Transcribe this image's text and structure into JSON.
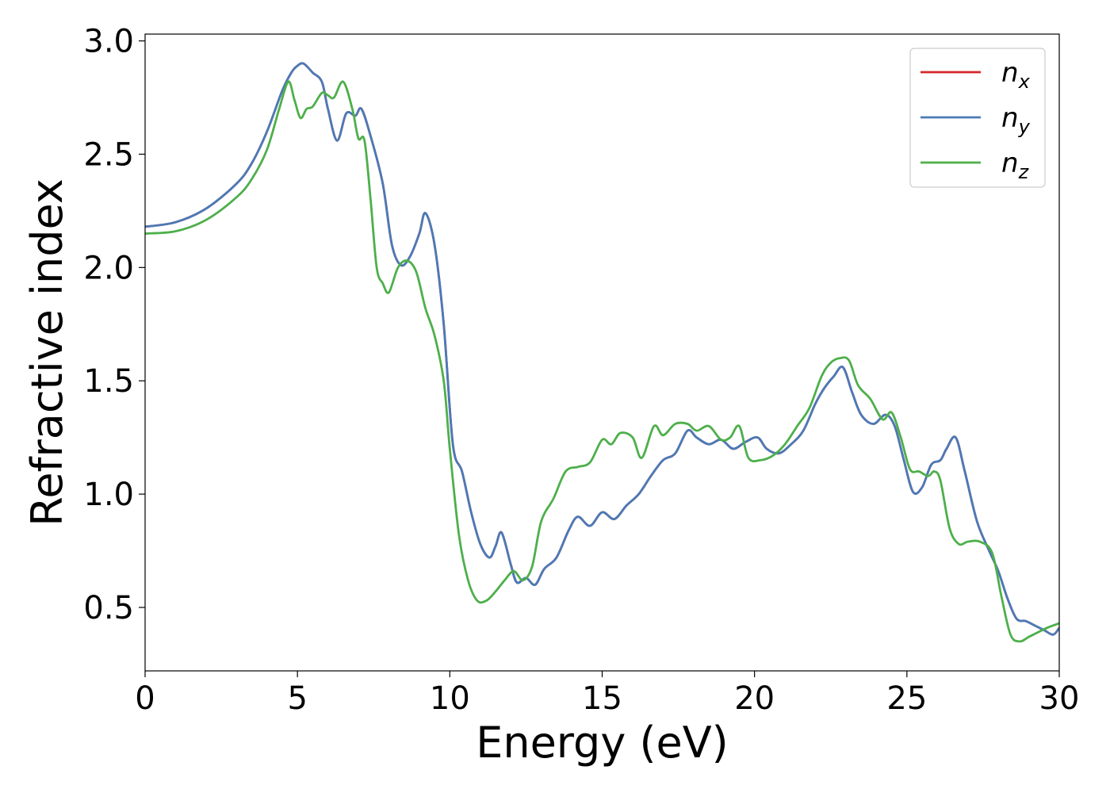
{
  "chart_data": {
    "type": "line",
    "title": "",
    "xlabel": "Energy (eV)",
    "ylabel": "Refractive index",
    "xlim": [
      0,
      30
    ],
    "ylim": [
      0.22,
      3.03
    ],
    "xticks": [
      0,
      5,
      10,
      15,
      20,
      25,
      30
    ],
    "yticks": [
      0.5,
      1.0,
      1.5,
      2.0,
      2.5,
      3.0
    ],
    "xtick_labels": [
      "0",
      "5",
      "10",
      "15",
      "20",
      "25",
      "30"
    ],
    "ytick_labels": [
      "0.5",
      "1.0",
      "1.5",
      "2.0",
      "2.5",
      "3.0"
    ],
    "grid": false,
    "legend_position": "top-right",
    "series": [
      {
        "name": "n",
        "subscript": "x",
        "color": "#d62728",
        "x": [
          0,
          1,
          2,
          3,
          3.5,
          4,
          4.5,
          4.8,
          5.0,
          5.2,
          5.5,
          5.8,
          6.0,
          6.3,
          6.6,
          6.9,
          7.1,
          7.4,
          7.8,
          8.1,
          8.4,
          8.7,
          9.0,
          9.2,
          9.5,
          9.8,
          10.1,
          10.4,
          10.7,
          11.0,
          11.3,
          11.5,
          11.7,
          12.0,
          12.2,
          12.5,
          12.8,
          13.1,
          13.5,
          13.9,
          14.2,
          14.6,
          15.0,
          15.4,
          15.8,
          16.2,
          16.6,
          17.0,
          17.4,
          17.8,
          18.1,
          18.5,
          18.9,
          19.3,
          19.7,
          20.1,
          20.4,
          20.8,
          21.2,
          21.6,
          22.0,
          22.3,
          22.6,
          22.9,
          23.2,
          23.5,
          23.9,
          24.3,
          24.6,
          24.9,
          25.2,
          25.5,
          25.8,
          26.1,
          26.3,
          26.6,
          26.9,
          27.3,
          27.7,
          28.0,
          28.3,
          28.6,
          28.9,
          29.2,
          29.5,
          29.8,
          30
        ],
        "y": [
          2.18,
          2.2,
          2.26,
          2.37,
          2.46,
          2.6,
          2.78,
          2.86,
          2.89,
          2.9,
          2.86,
          2.82,
          2.7,
          2.56,
          2.68,
          2.67,
          2.7,
          2.58,
          2.37,
          2.1,
          2.01,
          2.05,
          2.15,
          2.24,
          2.1,
          1.75,
          1.22,
          1.1,
          0.92,
          0.78,
          0.72,
          0.77,
          0.83,
          0.69,
          0.61,
          0.63,
          0.6,
          0.67,
          0.72,
          0.84,
          0.9,
          0.86,
          0.92,
          0.89,
          0.95,
          1.0,
          1.08,
          1.15,
          1.18,
          1.28,
          1.25,
          1.22,
          1.24,
          1.2,
          1.23,
          1.25,
          1.2,
          1.18,
          1.22,
          1.28,
          1.4,
          1.47,
          1.52,
          1.56,
          1.45,
          1.35,
          1.31,
          1.35,
          1.3,
          1.15,
          1.01,
          1.03,
          1.13,
          1.15,
          1.2,
          1.25,
          1.1,
          0.88,
          0.75,
          0.66,
          0.54,
          0.45,
          0.44,
          0.42,
          0.4,
          0.38,
          0.41
        ]
      },
      {
        "name": "n",
        "subscript": "y",
        "color": "#4a7ab8",
        "x": [
          0,
          1,
          2,
          3,
          3.5,
          4,
          4.5,
          4.8,
          5.0,
          5.2,
          5.5,
          5.8,
          6.0,
          6.3,
          6.6,
          6.9,
          7.1,
          7.4,
          7.8,
          8.1,
          8.4,
          8.7,
          9.0,
          9.2,
          9.5,
          9.8,
          10.1,
          10.4,
          10.7,
          11.0,
          11.3,
          11.5,
          11.7,
          12.0,
          12.2,
          12.5,
          12.8,
          13.1,
          13.5,
          13.9,
          14.2,
          14.6,
          15.0,
          15.4,
          15.8,
          16.2,
          16.6,
          17.0,
          17.4,
          17.8,
          18.1,
          18.5,
          18.9,
          19.3,
          19.7,
          20.1,
          20.4,
          20.8,
          21.2,
          21.6,
          22.0,
          22.3,
          22.6,
          22.9,
          23.2,
          23.5,
          23.9,
          24.3,
          24.6,
          24.9,
          25.2,
          25.5,
          25.8,
          26.1,
          26.3,
          26.6,
          26.9,
          27.3,
          27.7,
          28.0,
          28.3,
          28.6,
          28.9,
          29.2,
          29.5,
          29.8,
          30
        ],
        "y": [
          2.18,
          2.2,
          2.26,
          2.37,
          2.46,
          2.6,
          2.78,
          2.86,
          2.89,
          2.9,
          2.86,
          2.82,
          2.7,
          2.56,
          2.68,
          2.67,
          2.7,
          2.58,
          2.37,
          2.1,
          2.01,
          2.05,
          2.15,
          2.24,
          2.1,
          1.75,
          1.22,
          1.1,
          0.92,
          0.78,
          0.72,
          0.77,
          0.83,
          0.69,
          0.61,
          0.63,
          0.6,
          0.67,
          0.72,
          0.84,
          0.9,
          0.86,
          0.92,
          0.89,
          0.95,
          1.0,
          1.08,
          1.15,
          1.18,
          1.28,
          1.25,
          1.22,
          1.24,
          1.2,
          1.23,
          1.25,
          1.2,
          1.18,
          1.22,
          1.28,
          1.4,
          1.47,
          1.52,
          1.56,
          1.45,
          1.35,
          1.31,
          1.35,
          1.3,
          1.15,
          1.01,
          1.03,
          1.13,
          1.15,
          1.2,
          1.25,
          1.1,
          0.88,
          0.75,
          0.66,
          0.54,
          0.45,
          0.44,
          0.42,
          0.4,
          0.38,
          0.41
        ]
      },
      {
        "name": "n",
        "subscript": "z",
        "color": "#4daf4a",
        "x": [
          0,
          1,
          2,
          3,
          3.5,
          4,
          4.4,
          4.7,
          4.9,
          5.1,
          5.3,
          5.5,
          5.8,
          6.0,
          6.2,
          6.5,
          6.8,
          7.0,
          7.2,
          7.4,
          7.6,
          7.8,
          8.0,
          8.3,
          8.6,
          8.9,
          9.2,
          9.5,
          9.8,
          10.0,
          10.3,
          10.6,
          10.9,
          11.2,
          11.5,
          11.8,
          12.1,
          12.4,
          12.7,
          13.0,
          13.4,
          13.8,
          14.2,
          14.6,
          15.0,
          15.3,
          15.6,
          16.0,
          16.3,
          16.7,
          17.0,
          17.4,
          17.8,
          18.1,
          18.5,
          18.9,
          19.2,
          19.5,
          19.8,
          20.2,
          20.6,
          21.0,
          21.4,
          21.8,
          22.2,
          22.5,
          22.8,
          23.1,
          23.4,
          23.8,
          24.2,
          24.5,
          24.8,
          25.1,
          25.4,
          25.7,
          25.9,
          26.1,
          26.4,
          26.7,
          27.0,
          27.4,
          27.8,
          28.1,
          28.4,
          28.7,
          29.0,
          29.3,
          29.6,
          30
        ],
        "y": [
          2.15,
          2.16,
          2.21,
          2.31,
          2.39,
          2.52,
          2.7,
          2.82,
          2.74,
          2.66,
          2.7,
          2.71,
          2.77,
          2.76,
          2.75,
          2.82,
          2.7,
          2.57,
          2.56,
          2.3,
          2.0,
          1.93,
          1.89,
          2.0,
          2.03,
          1.98,
          1.82,
          1.7,
          1.5,
          1.2,
          0.82,
          0.62,
          0.53,
          0.53,
          0.57,
          0.62,
          0.66,
          0.62,
          0.68,
          0.88,
          0.98,
          1.1,
          1.12,
          1.14,
          1.24,
          1.22,
          1.27,
          1.25,
          1.16,
          1.3,
          1.26,
          1.31,
          1.31,
          1.28,
          1.3,
          1.24,
          1.25,
          1.3,
          1.16,
          1.15,
          1.17,
          1.22,
          1.3,
          1.38,
          1.52,
          1.58,
          1.6,
          1.59,
          1.48,
          1.42,
          1.33,
          1.36,
          1.25,
          1.11,
          1.1,
          1.08,
          1.1,
          1.06,
          0.85,
          0.78,
          0.79,
          0.79,
          0.74,
          0.55,
          0.38,
          0.35,
          0.37,
          0.39,
          0.41,
          0.43
        ]
      }
    ]
  }
}
